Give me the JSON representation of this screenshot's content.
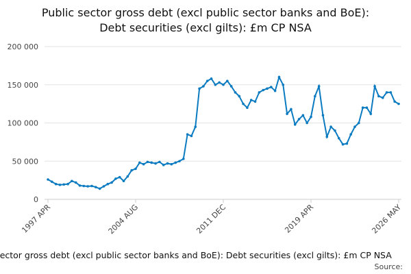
{
  "chart_data": {
    "type": "line",
    "title": [
      "Public sector gross debt (excl public sector banks and BoE):",
      "Debt securities (excl gilts): £m CP NSA"
    ],
    "caption": "Public sector gross debt (excl public sector banks and BoE): Debt securities (excl gilts): £m CP NSA",
    "source": "Source:",
    "x": [
      "1997 APR",
      "1997 AUG",
      "1997 DEC",
      "1998 APR",
      "1998 AUG",
      "1998 DEC",
      "1999 APR",
      "1999 AUG",
      "1999 DEC",
      "2000 APR",
      "2000 AUG",
      "2000 DEC",
      "2001 APR",
      "2001 AUG",
      "2001 DEC",
      "2002 APR",
      "2002 AUG",
      "2002 DEC",
      "2003 APR",
      "2003 AUG",
      "2003 DEC",
      "2004 APR",
      "2004 AUG",
      "2004 DEC",
      "2005 APR",
      "2005 AUG",
      "2005 DEC",
      "2006 APR",
      "2006 AUG",
      "2006 DEC",
      "2007 APR",
      "2007 AUG",
      "2007 DEC",
      "2008 APR",
      "2008 AUG",
      "2008 DEC",
      "2009 APR",
      "2009 AUG",
      "2009 DEC",
      "2010 APR",
      "2010 AUG",
      "2010 DEC",
      "2011 APR",
      "2011 AUG",
      "2011 DEC",
      "2012 APR",
      "2012 AUG",
      "2012 DEC",
      "2013 APR",
      "2013 AUG",
      "2013 DEC",
      "2014 APR",
      "2014 AUG",
      "2014 DEC",
      "2015 APR",
      "2015 AUG",
      "2015 DEC",
      "2016 APR",
      "2016 AUG",
      "2016 DEC",
      "2017 APR",
      "2017 AUG",
      "2017 DEC",
      "2018 APR",
      "2018 AUG",
      "2018 DEC",
      "2019 APR",
      "2019 AUG",
      "2019 DEC",
      "2020 APR",
      "2020 AUG",
      "2020 DEC",
      "2021 APR",
      "2021 AUG",
      "2021 DEC",
      "2022 APR",
      "2022 AUG",
      "2022 DEC",
      "2023 APR",
      "2023 AUG",
      "2023 DEC",
      "2024 APR",
      "2024 AUG",
      "2024 DEC",
      "2025 APR",
      "2025 AUG",
      "2025 DEC",
      "2026 APR",
      "2026 MAY"
    ],
    "series": [
      {
        "color": "#0b7bc1",
        "values": [
          26000,
          23000,
          20000,
          19000,
          19500,
          20000,
          24000,
          22000,
          18000,
          17500,
          17000,
          17500,
          16000,
          14000,
          17000,
          20000,
          22000,
          27000,
          29000,
          24000,
          30000,
          38000,
          40000,
          48000,
          46000,
          49000,
          48000,
          47000,
          49000,
          45000,
          47000,
          46000,
          48000,
          50000,
          53000,
          85000,
          83000,
          95000,
          145000,
          148000,
          155000,
          158000,
          150000,
          153000,
          150000,
          155000,
          148000,
          140000,
          135000,
          125000,
          120000,
          130000,
          128000,
          140000,
          143000,
          145000,
          147000,
          142000,
          160000,
          150000,
          112000,
          118000,
          98000,
          105000,
          110000,
          100000,
          108000,
          135000,
          148000,
          110000,
          82000,
          95000,
          90000,
          80000,
          72000,
          73000,
          85000,
          95000,
          100000,
          120000,
          120000,
          112000,
          148000,
          135000,
          133000,
          140000,
          140000,
          128000,
          125000
        ]
      }
    ],
    "xticks": [
      "1997 APR",
      "2004 AUG",
      "2011 DEC",
      "2019 APR",
      "2026 MAY"
    ],
    "ylim": [
      0,
      200000
    ],
    "yticks": [
      0,
      {
        "value": 50000,
        "label": "50 000"
      },
      {
        "value": 100000,
        "label": "100 000"
      },
      {
        "value": 150000,
        "label": "150 000"
      },
      {
        "value": 200000,
        "label": "200 000"
      }
    ],
    "grid": true
  }
}
